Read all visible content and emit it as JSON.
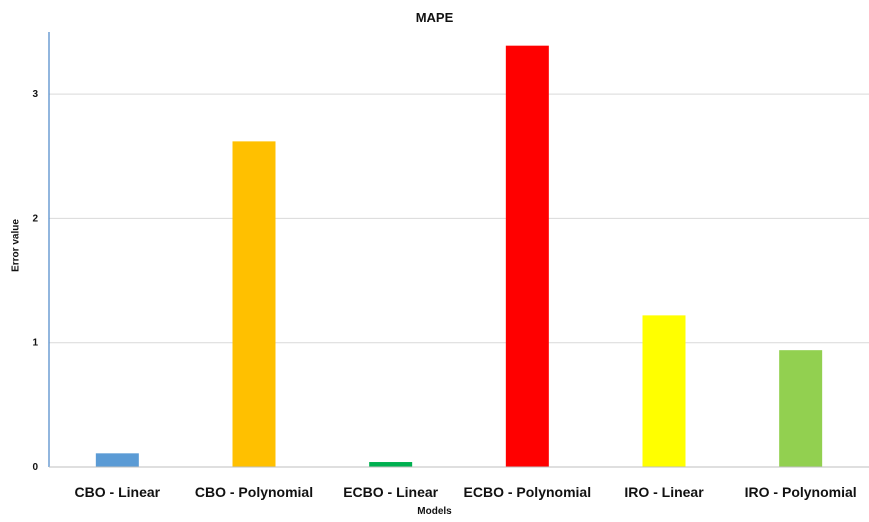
{
  "chart_data": {
    "type": "bar",
    "title": "MAPE",
    "xlabel": "Models",
    "ylabel": "Error value",
    "categories": [
      "CBO - Linear",
      "CBO - Polynomial",
      "ECBO - Linear",
      "ECBO - Polynomial",
      "IRO - Linear",
      "IRO - Polynomial"
    ],
    "values": [
      0.11,
      2.62,
      0.04,
      3.39,
      1.22,
      0.94
    ],
    "colors": [
      "#5b9bd5",
      "#ffc000",
      "#00b050",
      "#ff0000",
      "#ffff00",
      "#92d050"
    ],
    "ylim": [
      0,
      3.5
    ],
    "yticks": [
      0,
      1,
      2,
      3
    ],
    "grid": true,
    "legend": "none"
  }
}
